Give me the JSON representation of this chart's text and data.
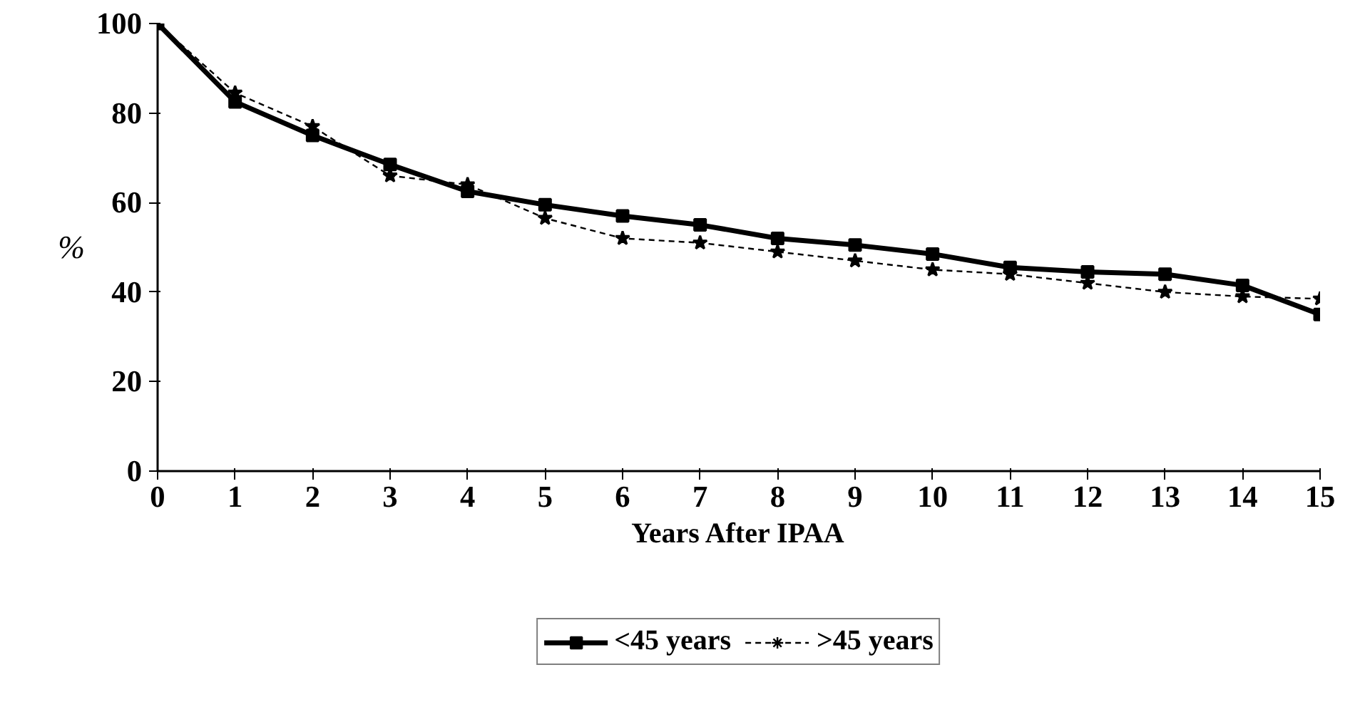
{
  "chart_data": {
    "type": "line",
    "xlabel": "Years After IPAA",
    "ylabel": "%",
    "x": [
      0,
      1,
      2,
      3,
      4,
      5,
      6,
      7,
      8,
      9,
      10,
      11,
      12,
      13,
      14,
      15
    ],
    "xlim": [
      0,
      15
    ],
    "xticks": [
      0,
      1,
      2,
      3,
      4,
      5,
      6,
      7,
      8,
      9,
      10,
      11,
      12,
      13,
      14,
      15
    ],
    "ylim": [
      0,
      100
    ],
    "yticks": [
      0,
      20,
      40,
      60,
      80,
      100
    ],
    "grid": false,
    "legend": "bottom",
    "series": [
      {
        "name": "<45 years",
        "color": "#000000",
        "marker": "square",
        "line_style": "solid",
        "values": [
          100,
          82.5,
          75,
          68.5,
          62.5,
          59.5,
          57,
          55,
          52,
          50.5,
          48.5,
          45.5,
          44.5,
          44,
          41.5,
          35
        ]
      },
      {
        "name": ">45 years",
        "color": "#000000",
        "marker": "star",
        "line_style": "dashed",
        "values": [
          100,
          84.5,
          77,
          66,
          64,
          56.5,
          52,
          51,
          49,
          47,
          45,
          44,
          42,
          40,
          39,
          38.5
        ]
      }
    ]
  }
}
